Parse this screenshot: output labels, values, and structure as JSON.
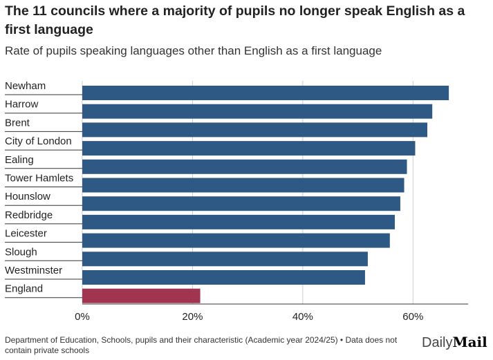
{
  "chart_data": {
    "type": "hbar",
    "title": "The 11 councils where a majority of pupils no longer speak English as a first language",
    "subtitle": "Rate of pupils speaking languages other than English as a first language",
    "categories": [
      "Newham",
      "Harrow",
      "Brent",
      "City of London",
      "Ealing",
      "Tower Hamlets",
      "Hounslow",
      "Redbridge",
      "Leicester",
      "Slough",
      "Westminster",
      "England"
    ],
    "values": [
      66.5,
      63.5,
      62.6,
      60.4,
      58.9,
      58.4,
      57.7,
      56.7,
      55.8,
      51.8,
      51.3,
      21.4
    ],
    "colors": [
      "#2f5985",
      "#2f5985",
      "#2f5985",
      "#2f5985",
      "#2f5985",
      "#2f5985",
      "#2f5985",
      "#2f5985",
      "#2f5985",
      "#2f5985",
      "#2f5985",
      "#a1344f"
    ],
    "xlim": [
      0,
      70
    ],
    "xticks": [
      {
        "value": 0,
        "label": "0%"
      },
      {
        "value": 20,
        "label": "20%"
      },
      {
        "value": 40,
        "label": "40%"
      },
      {
        "value": 60,
        "label": "60%"
      }
    ],
    "grid": true,
    "source": "Department of Education, Schools, pupils and their characteristic (Academic year 2024/25) • Data does not contain private schools",
    "brand": {
      "first": "Daily",
      "second": "Mail"
    }
  }
}
